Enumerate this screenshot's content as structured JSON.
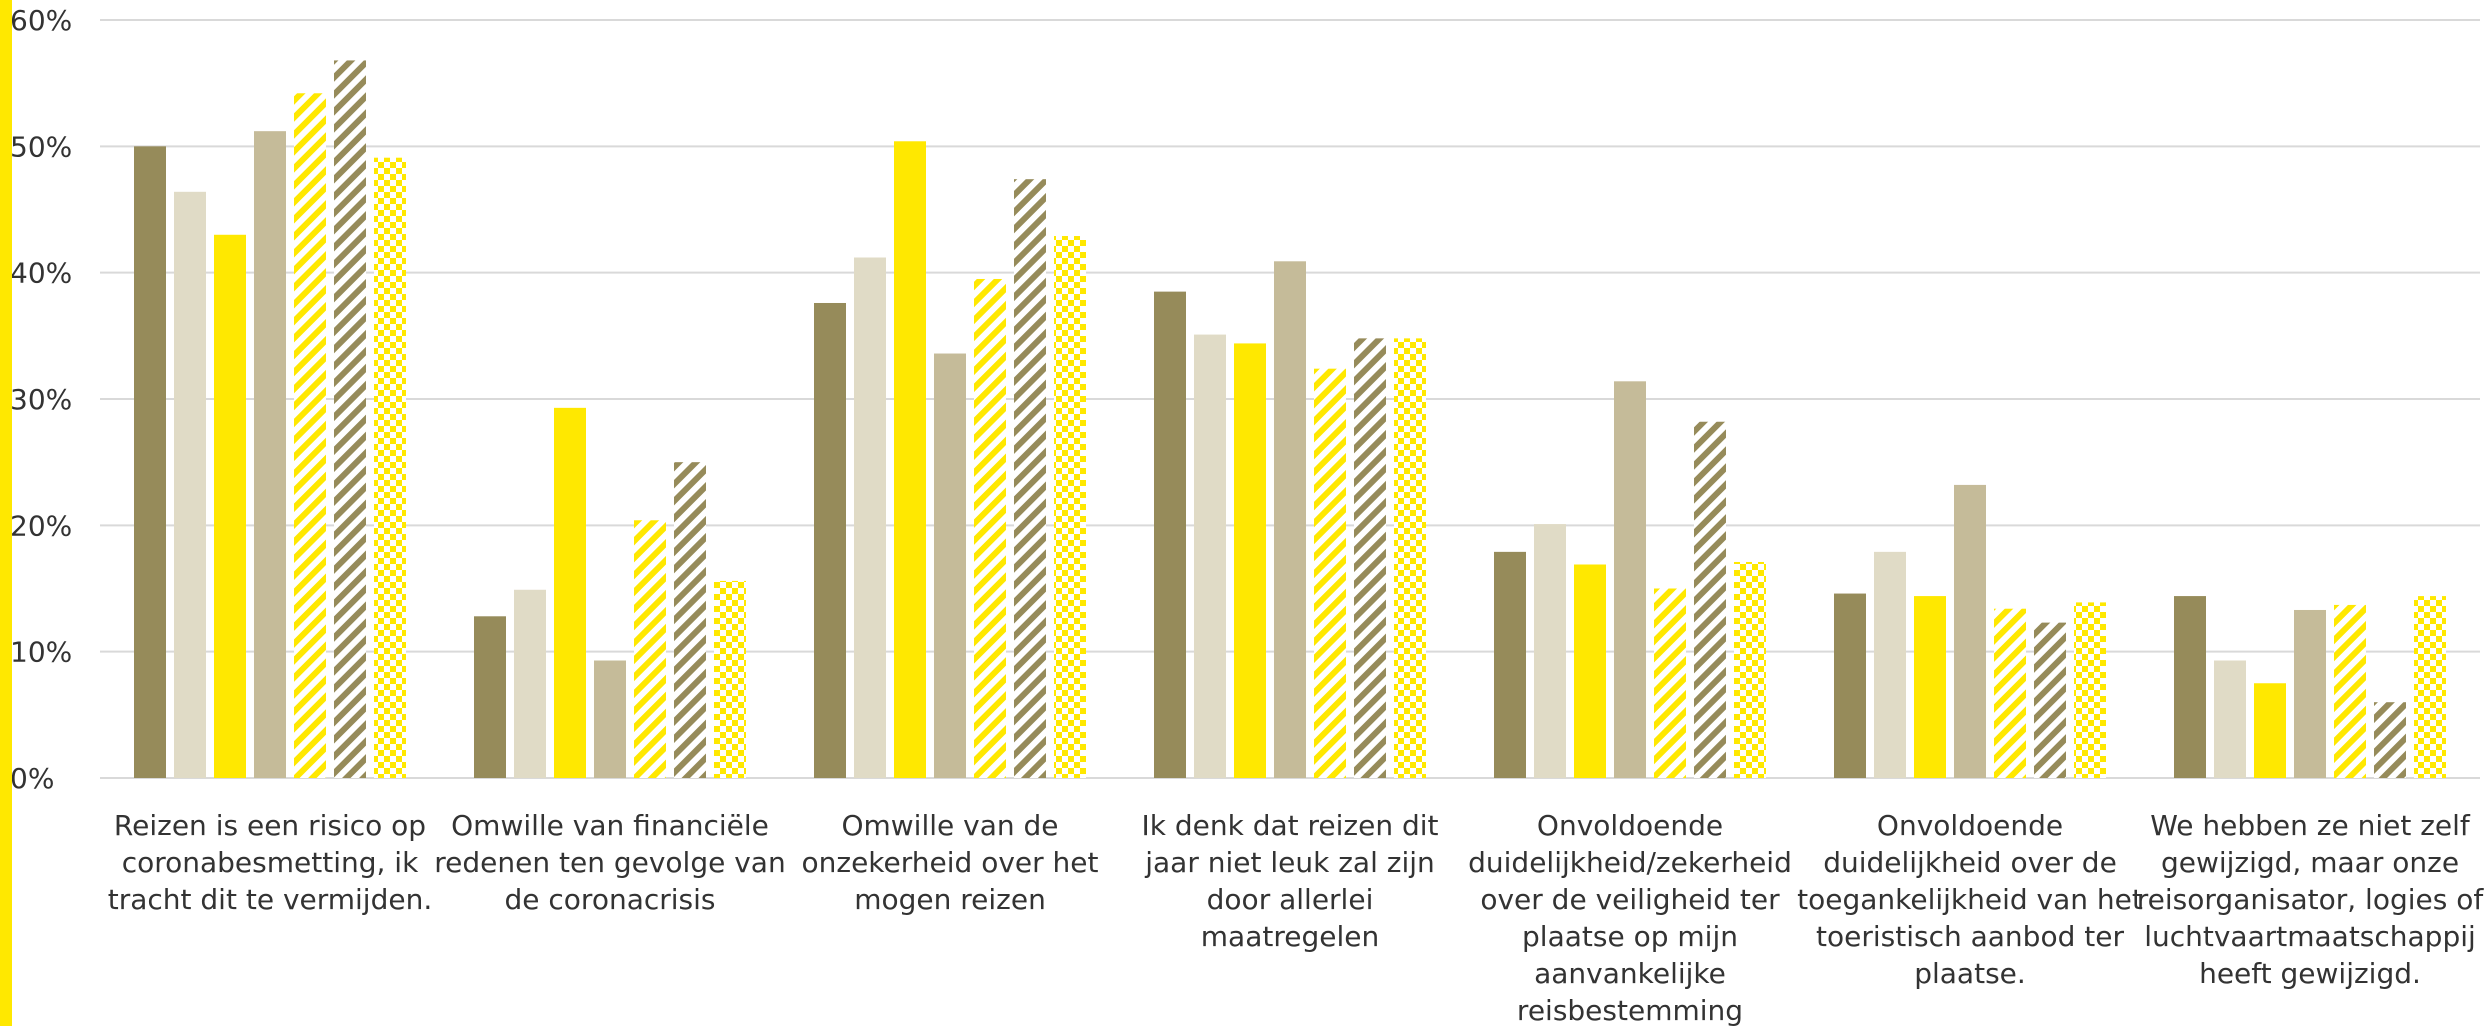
{
  "chart_data": {
    "type": "bar",
    "ylim": [
      0,
      60
    ],
    "yticks": [
      "0%",
      "10%",
      "20%",
      "30%",
      "40%",
      "50%",
      "60%"
    ],
    "grid": true,
    "categories": [
      "Reizen is een risico op coronabesmetting, ik tracht dit te vermijden.",
      "Omwille van financiële redenen ten gevolge van de coronacrisis",
      "Omwille van de onzekerheid over het mogen reizen",
      "Ik denk dat reizen dit jaar niet leuk zal zijn door allerlei maatregelen",
      "Onvoldoende duidelijkheid/zekerheid over de veiligheid ter plaatse op mijn aanvankelijke reisbestemming",
      "Onvoldoende duidelijkheid over de toegankelijkheid van het toeristisch aanbod ter plaatse.",
      "We hebben ze niet zelf gewijzigd, maar onze reisorganisator, logies of luchtvaartmaatschappij heeft gewijzigd."
    ],
    "category_lines": [
      [
        "Reizen is een risico op",
        "coronabesmetting, ik",
        "tracht dit te vermijden."
      ],
      [
        "Omwille van financiële",
        "redenen ten gevolge van",
        "de coronacrisis"
      ],
      [
        "Omwille van de",
        "onzekerheid over het",
        "mogen reizen"
      ],
      [
        "Ik denk dat reizen dit",
        "jaar niet leuk zal zijn",
        "door allerlei",
        "maatregelen"
      ],
      [
        "Onvoldoende",
        "duidelijkheid/zekerheid",
        "over de veiligheid ter",
        "plaatse op mijn",
        "aanvankelijke",
        "reisbestemming"
      ],
      [
        "Onvoldoende",
        "duidelijkheid over de",
        "toegankelijkheid van het",
        "toeristisch aanbod ter",
        "plaatse."
      ],
      [
        "We hebben ze niet zelf",
        "gewijzigd, maar onze",
        "reisorganisator, logies of",
        "luchtvaartmaatschappij",
        "heeft gewijzigd."
      ]
    ],
    "series": [
      {
        "color": "#968b5a",
        "pattern": "solid",
        "values": [
          50.0,
          12.8,
          37.6,
          38.5,
          17.9,
          14.6,
          14.4
        ]
      },
      {
        "color": "#e0dbc6",
        "pattern": "solid",
        "values": [
          46.4,
          14.9,
          41.2,
          35.1,
          20.1,
          17.9,
          9.3
        ]
      },
      {
        "color": "#ffe800",
        "pattern": "solid",
        "values": [
          43.0,
          29.3,
          50.4,
          34.4,
          16.9,
          14.4,
          7.5
        ]
      },
      {
        "color": "#c5bb99",
        "pattern": "solid",
        "values": [
          51.2,
          9.3,
          33.6,
          40.9,
          31.4,
          23.2,
          13.3
        ]
      },
      {
        "color": "#ffe800",
        "pattern": "diagonal",
        "values": [
          54.2,
          20.4,
          39.5,
          32.4,
          15.0,
          13.4,
          13.7
        ]
      },
      {
        "color": "#968b5a",
        "pattern": "diagonal",
        "values": [
          56.8,
          25.0,
          47.4,
          34.8,
          28.2,
          12.3,
          6.0
        ]
      },
      {
        "color": "#ffe800",
        "pattern": "checker",
        "values": [
          49.1,
          15.6,
          42.9,
          34.8,
          17.1,
          13.9,
          14.4
        ]
      }
    ]
  }
}
